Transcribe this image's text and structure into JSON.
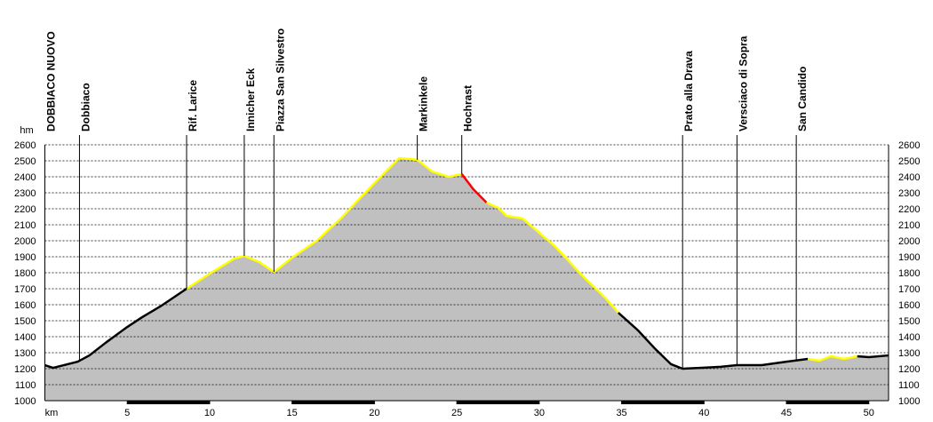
{
  "chart_data": {
    "type": "elevation-profile",
    "x_label": "km",
    "y_label": "hm",
    "xlim": [
      0,
      51.2
    ],
    "ylim": [
      1000,
      2600
    ],
    "xticks": [
      5,
      10,
      15,
      20,
      25,
      30,
      35,
      40,
      45,
      50
    ],
    "yticks": [
      1000,
      1100,
      1200,
      1300,
      1400,
      1500,
      1600,
      1700,
      1800,
      1900,
      2000,
      2100,
      2200,
      2300,
      2400,
      2500,
      2600
    ],
    "grid": true,
    "fill_color": "#c0c0c0",
    "series": [
      {
        "color": "#000000",
        "x": [
          0,
          0.5,
          2,
          2.7,
          3.75,
          5,
          5.9,
          7,
          8.6
        ],
        "values": [
          1222,
          1205,
          1244,
          1283,
          1367,
          1461,
          1522,
          1589,
          1700
        ]
      },
      {
        "color": "#ffff00",
        "x": [
          8.6,
          10,
          11.5,
          12.1,
          13,
          13.9,
          15,
          16.5,
          18,
          20,
          21.5,
          22.6,
          23.5,
          24.5,
          25.3
        ],
        "values": [
          1700,
          1794,
          1889,
          1905,
          1867,
          1805,
          1894,
          2000,
          2144,
          2361,
          2517,
          2506,
          2433,
          2400,
          2417
        ]
      },
      {
        "color": "#ff0000",
        "x": [
          25.3,
          26,
          26.8
        ],
        "values": [
          2417,
          2322,
          2239
        ]
      },
      {
        "color": "#ffff00",
        "x": [
          26.8,
          27.5,
          28,
          29,
          30,
          31,
          32.5,
          34,
          34.8
        ],
        "values": [
          2239,
          2206,
          2156,
          2139,
          2050,
          1961,
          1794,
          1644,
          1550
        ]
      },
      {
        "color": "#000000",
        "x": [
          34.8,
          36,
          37,
          38,
          38.7,
          40,
          41,
          42,
          43.5,
          45,
          46.3
        ],
        "values": [
          1550,
          1439,
          1328,
          1228,
          1200,
          1206,
          1212,
          1222,
          1222,
          1244,
          1261
        ]
      },
      {
        "color": "#ffff00",
        "x": [
          46.3,
          47,
          47.7,
          48.5,
          49.3
        ],
        "values": [
          1261,
          1250,
          1278,
          1261,
          1278
        ]
      },
      {
        "color": "#000000",
        "x": [
          49.3,
          50,
          51.2
        ],
        "values": [
          1278,
          1272,
          1283
        ]
      }
    ],
    "waypoints": [
      {
        "name": "DOBBIACO NUOVO",
        "km": 0
      },
      {
        "name": "Dobbiaco",
        "km": 2.1
      },
      {
        "name": "Rif. Larice",
        "km": 8.6
      },
      {
        "name": "Innicher Eck",
        "km": 12.1
      },
      {
        "name": "Piazza San Silvestro",
        "km": 13.9
      },
      {
        "name": "Markinkele",
        "km": 22.6
      },
      {
        "name": "Hochrast",
        "km": 25.3
      },
      {
        "name": "Prato alla Drava",
        "km": 38.7
      },
      {
        "name": "Versciaco di Sopra",
        "km": 42.0
      },
      {
        "name": "San Candido",
        "km": 45.6
      }
    ]
  }
}
